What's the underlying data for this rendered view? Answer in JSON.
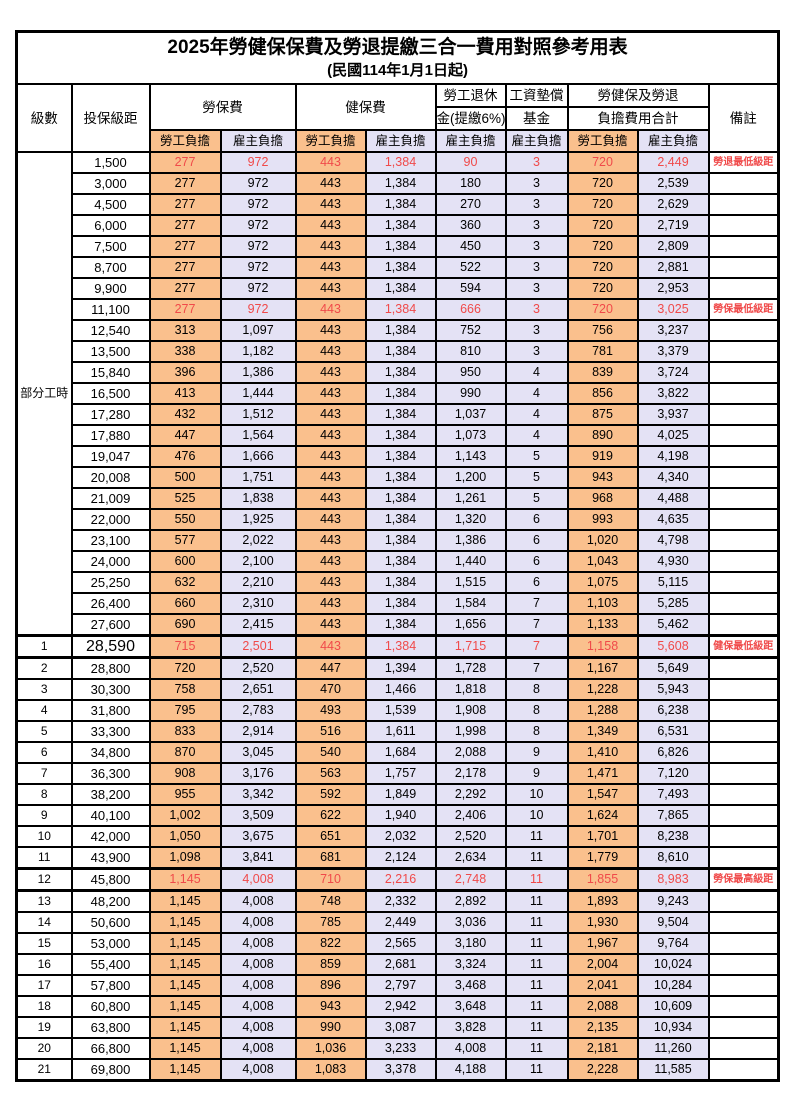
{
  "table": {
    "title": "2025年勞健保保費及勞退提繳三合一費用對照參考用表",
    "subtitle": "(民國114年1月1日起)",
    "headers": {
      "level": "級數",
      "bracket": "投保級距",
      "labor_ins": "勞保費",
      "health_ins": "健保費",
      "pension_line1": "勞工退休",
      "pension_line2": "金(提繳6%)",
      "wage_fund_line1": "工資墊償",
      "wage_fund_line2": "基金",
      "total_line1": "勞健保及勞退",
      "total_line2": "負擔費用合計",
      "remark": "備註",
      "employee": "勞工負擔",
      "employer": "雇主負擔"
    },
    "part_time_label": "部分工時",
    "part_time_span": 23,
    "colors": {
      "employee_bg": "#FAC08D",
      "employer_bg": "#E4E2F5",
      "highlight_text": "#F04A4A",
      "border": "#000000"
    },
    "column_keys": [
      "labor-employee",
      "labor-employer",
      "health-employee",
      "health-employer",
      "pension-employer",
      "wage-fund-employer",
      "total-employee",
      "total-employer"
    ],
    "rows": [
      {
        "level": null,
        "bracket": "1,500",
        "v": [
          "277",
          "972",
          "443",
          "1,384",
          "90",
          "3",
          "720",
          "2,449"
        ],
        "remark": "勞退最低級距",
        "hl": true,
        "thick": false,
        "big": false
      },
      {
        "level": null,
        "bracket": "3,000",
        "v": [
          "277",
          "972",
          "443",
          "1,384",
          "180",
          "3",
          "720",
          "2,539"
        ],
        "remark": "",
        "hl": false,
        "thick": false,
        "big": false
      },
      {
        "level": null,
        "bracket": "4,500",
        "v": [
          "277",
          "972",
          "443",
          "1,384",
          "270",
          "3",
          "720",
          "2,629"
        ],
        "remark": "",
        "hl": false,
        "thick": false,
        "big": false
      },
      {
        "level": null,
        "bracket": "6,000",
        "v": [
          "277",
          "972",
          "443",
          "1,384",
          "360",
          "3",
          "720",
          "2,719"
        ],
        "remark": "",
        "hl": false,
        "thick": false,
        "big": false
      },
      {
        "level": null,
        "bracket": "7,500",
        "v": [
          "277",
          "972",
          "443",
          "1,384",
          "450",
          "3",
          "720",
          "2,809"
        ],
        "remark": "",
        "hl": false,
        "thick": false,
        "big": false
      },
      {
        "level": null,
        "bracket": "8,700",
        "v": [
          "277",
          "972",
          "443",
          "1,384",
          "522",
          "3",
          "720",
          "2,881"
        ],
        "remark": "",
        "hl": false,
        "thick": false,
        "big": false
      },
      {
        "level": null,
        "bracket": "9,900",
        "v": [
          "277",
          "972",
          "443",
          "1,384",
          "594",
          "3",
          "720",
          "2,953"
        ],
        "remark": "",
        "hl": false,
        "thick": false,
        "big": false
      },
      {
        "level": null,
        "bracket": "11,100",
        "v": [
          "277",
          "972",
          "443",
          "1,384",
          "666",
          "3",
          "720",
          "3,025"
        ],
        "remark": "勞保最低級距",
        "hl": true,
        "thick": false,
        "big": false
      },
      {
        "level": null,
        "bracket": "12,540",
        "v": [
          "313",
          "1,097",
          "443",
          "1,384",
          "752",
          "3",
          "756",
          "3,237"
        ],
        "remark": "",
        "hl": false,
        "thick": false,
        "big": false
      },
      {
        "level": null,
        "bracket": "13,500",
        "v": [
          "338",
          "1,182",
          "443",
          "1,384",
          "810",
          "3",
          "781",
          "3,379"
        ],
        "remark": "",
        "hl": false,
        "thick": false,
        "big": false
      },
      {
        "level": null,
        "bracket": "15,840",
        "v": [
          "396",
          "1,386",
          "443",
          "1,384",
          "950",
          "4",
          "839",
          "3,724"
        ],
        "remark": "",
        "hl": false,
        "thick": false,
        "big": false
      },
      {
        "level": null,
        "bracket": "16,500",
        "v": [
          "413",
          "1,444",
          "443",
          "1,384",
          "990",
          "4",
          "856",
          "3,822"
        ],
        "remark": "",
        "hl": false,
        "thick": false,
        "big": false
      },
      {
        "level": null,
        "bracket": "17,280",
        "v": [
          "432",
          "1,512",
          "443",
          "1,384",
          "1,037",
          "4",
          "875",
          "3,937"
        ],
        "remark": "",
        "hl": false,
        "thick": false,
        "big": false
      },
      {
        "level": null,
        "bracket": "17,880",
        "v": [
          "447",
          "1,564",
          "443",
          "1,384",
          "1,073",
          "4",
          "890",
          "4,025"
        ],
        "remark": "",
        "hl": false,
        "thick": false,
        "big": false
      },
      {
        "level": null,
        "bracket": "19,047",
        "v": [
          "476",
          "1,666",
          "443",
          "1,384",
          "1,143",
          "5",
          "919",
          "4,198"
        ],
        "remark": "",
        "hl": false,
        "thick": false,
        "big": false
      },
      {
        "level": null,
        "bracket": "20,008",
        "v": [
          "500",
          "1,751",
          "443",
          "1,384",
          "1,200",
          "5",
          "943",
          "4,340"
        ],
        "remark": "",
        "hl": false,
        "thick": false,
        "big": false
      },
      {
        "level": null,
        "bracket": "21,009",
        "v": [
          "525",
          "1,838",
          "443",
          "1,384",
          "1,261",
          "5",
          "968",
          "4,488"
        ],
        "remark": "",
        "hl": false,
        "thick": false,
        "big": false
      },
      {
        "level": null,
        "bracket": "22,000",
        "v": [
          "550",
          "1,925",
          "443",
          "1,384",
          "1,320",
          "6",
          "993",
          "4,635"
        ],
        "remark": "",
        "hl": false,
        "thick": false,
        "big": false
      },
      {
        "level": null,
        "bracket": "23,100",
        "v": [
          "577",
          "2,022",
          "443",
          "1,384",
          "1,386",
          "6",
          "1,020",
          "4,798"
        ],
        "remark": "",
        "hl": false,
        "thick": false,
        "big": false
      },
      {
        "level": null,
        "bracket": "24,000",
        "v": [
          "600",
          "2,100",
          "443",
          "1,384",
          "1,440",
          "6",
          "1,043",
          "4,930"
        ],
        "remark": "",
        "hl": false,
        "thick": false,
        "big": false
      },
      {
        "level": null,
        "bracket": "25,250",
        "v": [
          "632",
          "2,210",
          "443",
          "1,384",
          "1,515",
          "6",
          "1,075",
          "5,115"
        ],
        "remark": "",
        "hl": false,
        "thick": false,
        "big": false
      },
      {
        "level": null,
        "bracket": "26,400",
        "v": [
          "660",
          "2,310",
          "443",
          "1,384",
          "1,584",
          "7",
          "1,103",
          "5,285"
        ],
        "remark": "",
        "hl": false,
        "thick": false,
        "big": false
      },
      {
        "level": null,
        "bracket": "27,600",
        "v": [
          "690",
          "2,415",
          "443",
          "1,384",
          "1,656",
          "7",
          "1,133",
          "5,462"
        ],
        "remark": "",
        "hl": false,
        "thick": false,
        "big": false
      },
      {
        "level": "1",
        "bracket": "28,590",
        "v": [
          "715",
          "2,501",
          "443",
          "1,384",
          "1,715",
          "7",
          "1,158",
          "5,608"
        ],
        "remark": "健保最低級距",
        "hl": true,
        "thick": true,
        "big": true
      },
      {
        "level": "2",
        "bracket": "28,800",
        "v": [
          "720",
          "2,520",
          "447",
          "1,394",
          "1,728",
          "7",
          "1,167",
          "5,649"
        ],
        "remark": "",
        "hl": false,
        "thick": false,
        "big": false
      },
      {
        "level": "3",
        "bracket": "30,300",
        "v": [
          "758",
          "2,651",
          "470",
          "1,466",
          "1,818",
          "8",
          "1,228",
          "5,943"
        ],
        "remark": "",
        "hl": false,
        "thick": false,
        "big": false
      },
      {
        "level": "4",
        "bracket": "31,800",
        "v": [
          "795",
          "2,783",
          "493",
          "1,539",
          "1,908",
          "8",
          "1,288",
          "6,238"
        ],
        "remark": "",
        "hl": false,
        "thick": false,
        "big": false
      },
      {
        "level": "5",
        "bracket": "33,300",
        "v": [
          "833",
          "2,914",
          "516",
          "1,611",
          "1,998",
          "8",
          "1,349",
          "6,531"
        ],
        "remark": "",
        "hl": false,
        "thick": false,
        "big": false
      },
      {
        "level": "6",
        "bracket": "34,800",
        "v": [
          "870",
          "3,045",
          "540",
          "1,684",
          "2,088",
          "9",
          "1,410",
          "6,826"
        ],
        "remark": "",
        "hl": false,
        "thick": false,
        "big": false
      },
      {
        "level": "7",
        "bracket": "36,300",
        "v": [
          "908",
          "3,176",
          "563",
          "1,757",
          "2,178",
          "9",
          "1,471",
          "7,120"
        ],
        "remark": "",
        "hl": false,
        "thick": false,
        "big": false
      },
      {
        "level": "8",
        "bracket": "38,200",
        "v": [
          "955",
          "3,342",
          "592",
          "1,849",
          "2,292",
          "10",
          "1,547",
          "7,493"
        ],
        "remark": "",
        "hl": false,
        "thick": false,
        "big": false
      },
      {
        "level": "9",
        "bracket": "40,100",
        "v": [
          "1,002",
          "3,509",
          "622",
          "1,940",
          "2,406",
          "10",
          "1,624",
          "7,865"
        ],
        "remark": "",
        "hl": false,
        "thick": false,
        "big": false
      },
      {
        "level": "10",
        "bracket": "42,000",
        "v": [
          "1,050",
          "3,675",
          "651",
          "2,032",
          "2,520",
          "11",
          "1,701",
          "8,238"
        ],
        "remark": "",
        "hl": false,
        "thick": false,
        "big": false
      },
      {
        "level": "11",
        "bracket": "43,900",
        "v": [
          "1,098",
          "3,841",
          "681",
          "2,124",
          "2,634",
          "11",
          "1,779",
          "8,610"
        ],
        "remark": "",
        "hl": false,
        "thick": false,
        "big": false
      },
      {
        "level": "12",
        "bracket": "45,800",
        "v": [
          "1,145",
          "4,008",
          "710",
          "2,216",
          "2,748",
          "11",
          "1,855",
          "8,983"
        ],
        "remark": "勞保最高級距",
        "hl": true,
        "thick": true,
        "big": false
      },
      {
        "level": "13",
        "bracket": "48,200",
        "v": [
          "1,145",
          "4,008",
          "748",
          "2,332",
          "2,892",
          "11",
          "1,893",
          "9,243"
        ],
        "remark": "",
        "hl": false,
        "thick": false,
        "big": false
      },
      {
        "level": "14",
        "bracket": "50,600",
        "v": [
          "1,145",
          "4,008",
          "785",
          "2,449",
          "3,036",
          "11",
          "1,930",
          "9,504"
        ],
        "remark": "",
        "hl": false,
        "thick": false,
        "big": false
      },
      {
        "level": "15",
        "bracket": "53,000",
        "v": [
          "1,145",
          "4,008",
          "822",
          "2,565",
          "3,180",
          "11",
          "1,967",
          "9,764"
        ],
        "remark": "",
        "hl": false,
        "thick": false,
        "big": false
      },
      {
        "level": "16",
        "bracket": "55,400",
        "v": [
          "1,145",
          "4,008",
          "859",
          "2,681",
          "3,324",
          "11",
          "2,004",
          "10,024"
        ],
        "remark": "",
        "hl": false,
        "thick": false,
        "big": false
      },
      {
        "level": "17",
        "bracket": "57,800",
        "v": [
          "1,145",
          "4,008",
          "896",
          "2,797",
          "3,468",
          "11",
          "2,041",
          "10,284"
        ],
        "remark": "",
        "hl": false,
        "thick": false,
        "big": false
      },
      {
        "level": "18",
        "bracket": "60,800",
        "v": [
          "1,145",
          "4,008",
          "943",
          "2,942",
          "3,648",
          "11",
          "2,088",
          "10,609"
        ],
        "remark": "",
        "hl": false,
        "thick": false,
        "big": false
      },
      {
        "level": "19",
        "bracket": "63,800",
        "v": [
          "1,145",
          "4,008",
          "990",
          "3,087",
          "3,828",
          "11",
          "2,135",
          "10,934"
        ],
        "remark": "",
        "hl": false,
        "thick": false,
        "big": false
      },
      {
        "level": "20",
        "bracket": "66,800",
        "v": [
          "1,145",
          "4,008",
          "1,036",
          "3,233",
          "4,008",
          "11",
          "2,181",
          "11,260"
        ],
        "remark": "",
        "hl": false,
        "thick": false,
        "big": false
      },
      {
        "level": "21",
        "bracket": "69,800",
        "v": [
          "1,145",
          "4,008",
          "1,083",
          "3,378",
          "4,188",
          "11",
          "2,228",
          "11,585"
        ],
        "remark": "",
        "hl": false,
        "thick": false,
        "big": false
      }
    ]
  }
}
